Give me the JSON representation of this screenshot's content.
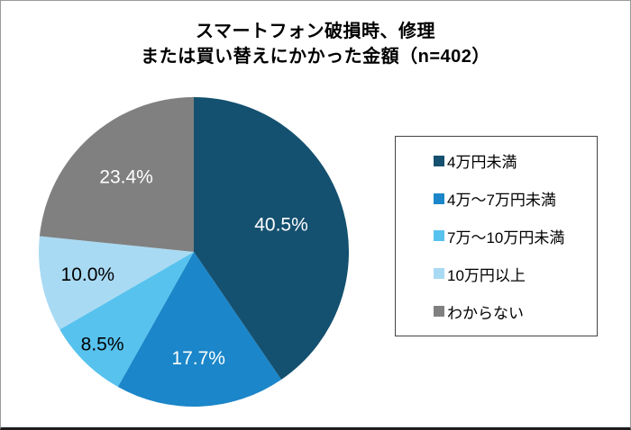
{
  "title": {
    "line1": "スマートフォン破損時、修理",
    "line2": "または買い替えにかかった金額（n=402）"
  },
  "chart_data": {
    "type": "pie",
    "title": "スマートフォン破損時、修理または買い替えにかかった金額（n=402）",
    "n": 402,
    "start_angle_deg": 0,
    "direction": "clockwise",
    "legend_position": "right",
    "slices": [
      {
        "label": "4万円未満",
        "value": 40.5,
        "display": "40.5%",
        "color": "#14506F",
        "label_color": "#ffffff"
      },
      {
        "label": "4万～7万円未満",
        "value": 17.7,
        "display": "17.7%",
        "color": "#1B86C9",
        "label_color": "#ffffff"
      },
      {
        "label": "7万～10万円未満",
        "value": 8.5,
        "display": "8.5%",
        "color": "#57C2EE",
        "label_color": "#000000"
      },
      {
        "label": "10万円以上",
        "value": 10.0,
        "display": "10.0%",
        "color": "#A9DAF3",
        "label_color": "#000000"
      },
      {
        "label": "わからない",
        "value": 23.4,
        "display": "23.4%",
        "color": "#808080",
        "label_color": "#ffffff"
      }
    ]
  }
}
